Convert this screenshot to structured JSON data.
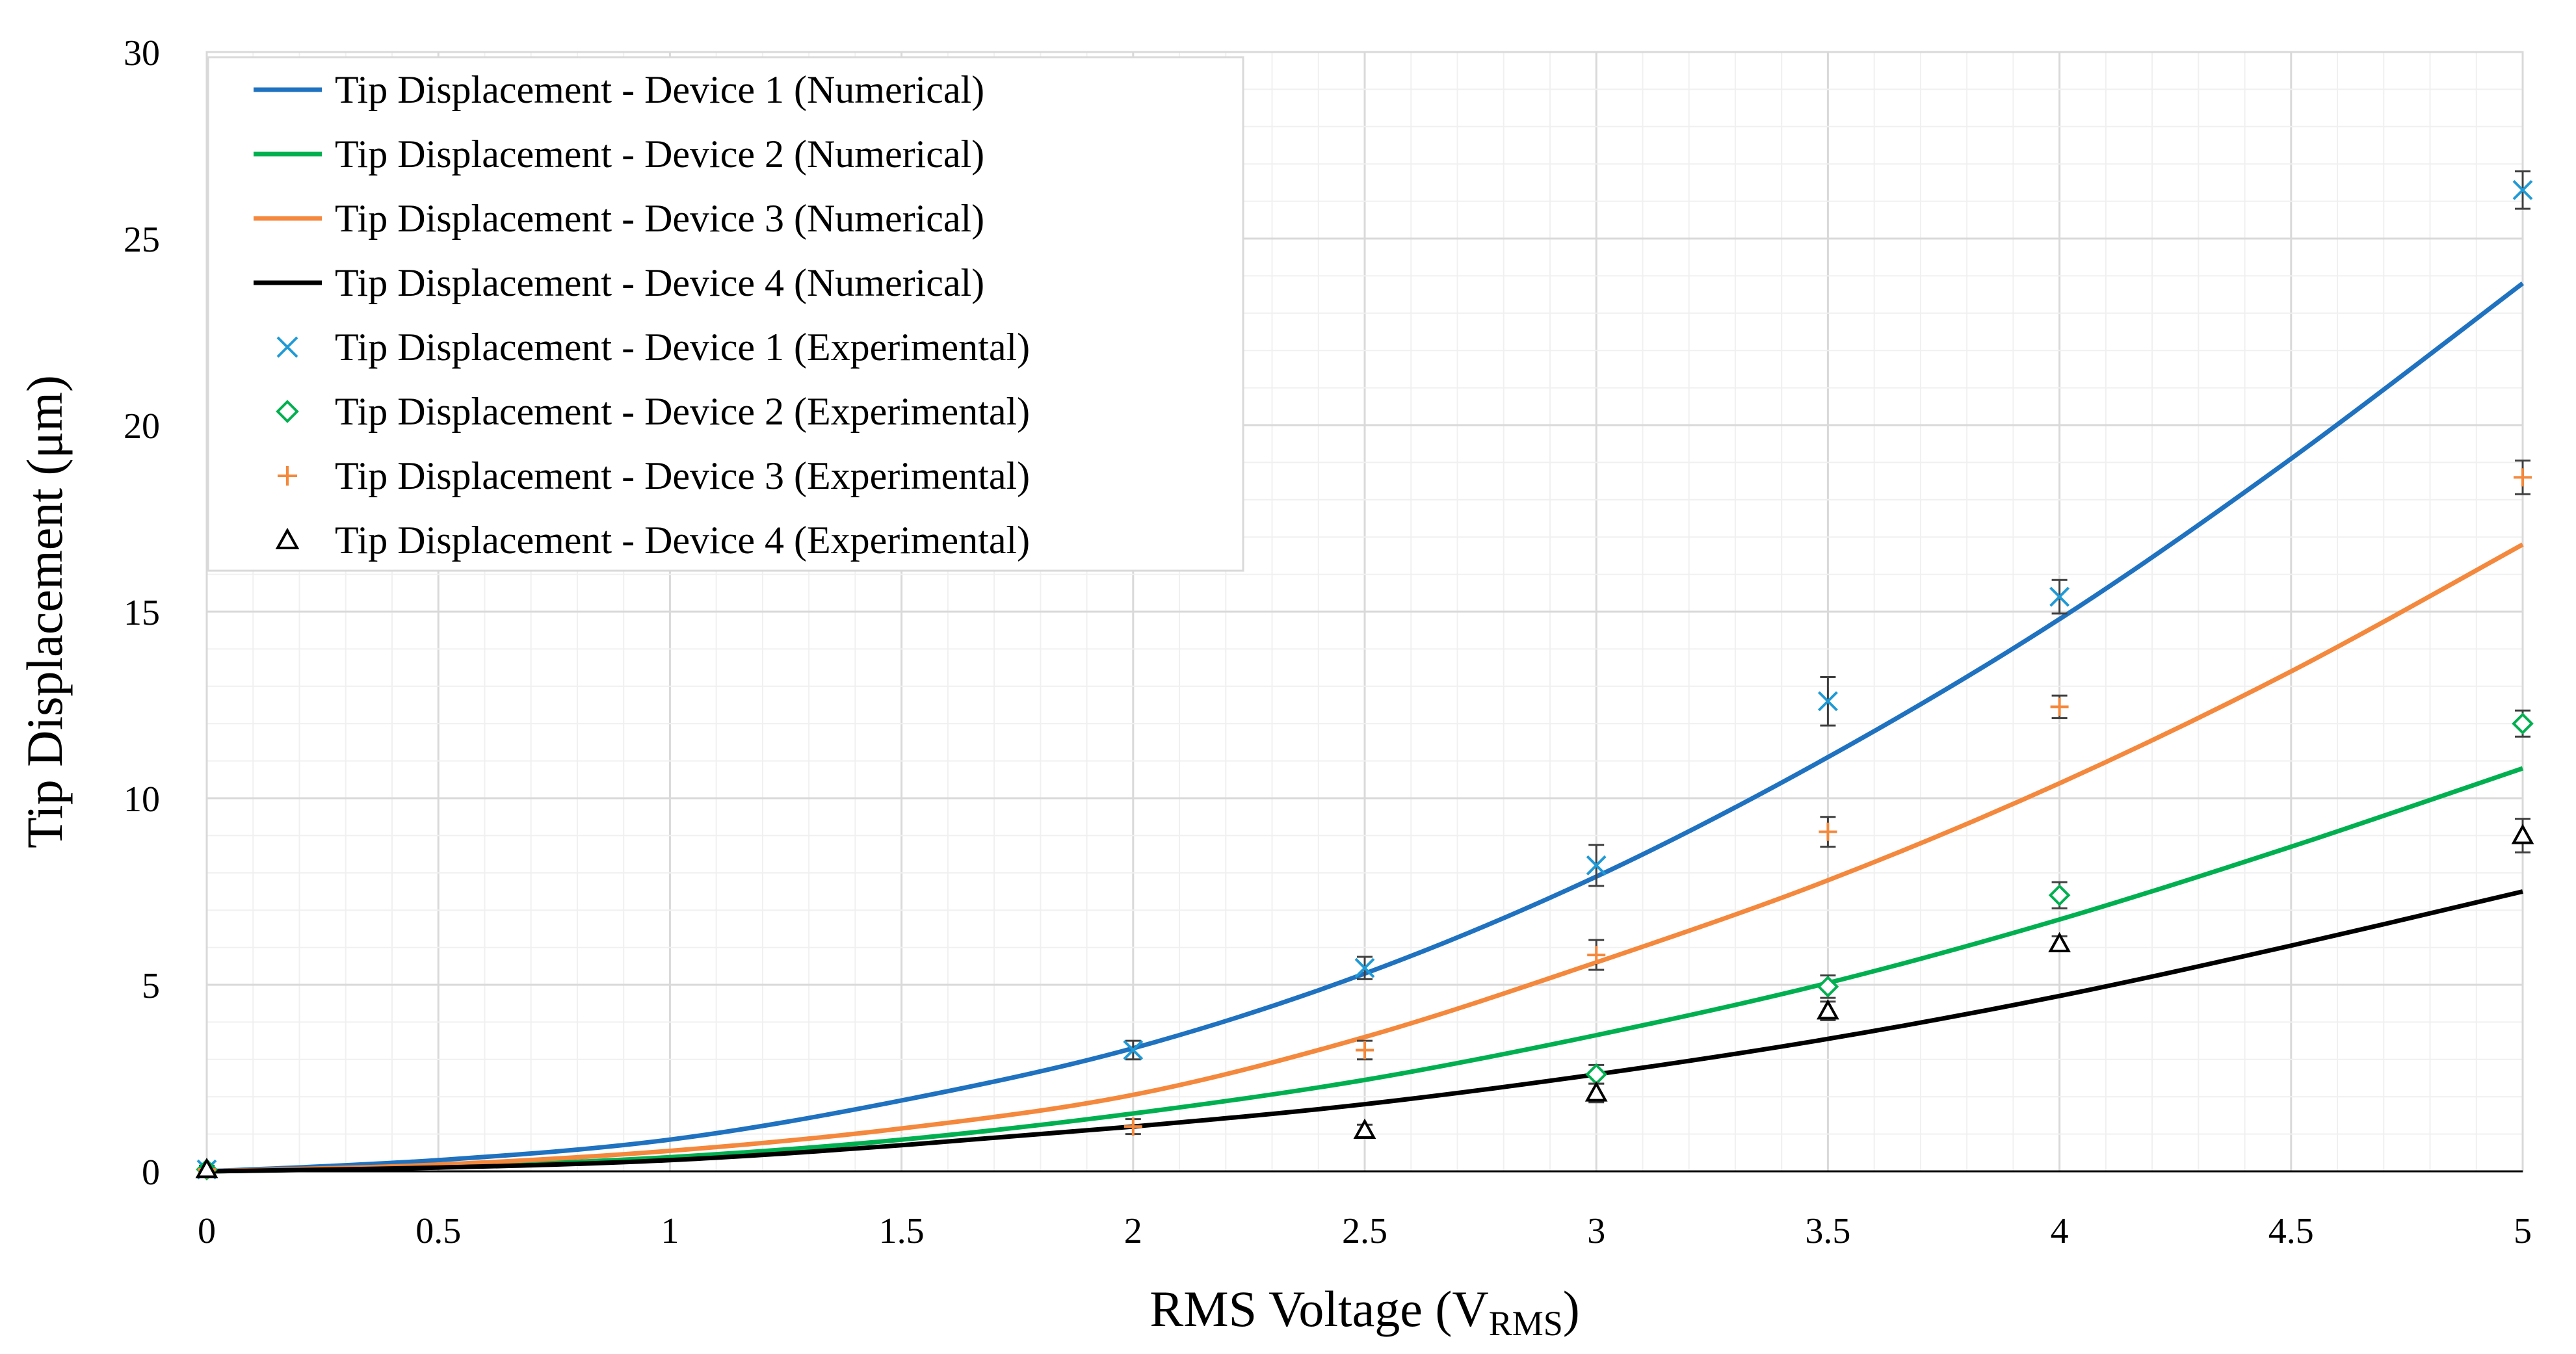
{
  "chart_data": {
    "type": "line",
    "xlabel": "RMS Voltage (V",
    "xlabel_subscript": "RMS",
    "xlabel_suffix": ")",
    "ylabel": "Tip Displacement (μm)",
    "xlim": [
      0,
      5
    ],
    "ylim": [
      0,
      30
    ],
    "x_ticks": [
      0,
      0.5,
      1,
      1.5,
      2,
      2.5,
      3,
      3.5,
      4,
      4.5,
      5
    ],
    "x_tick_labels": [
      "0",
      "0.5",
      "1",
      "1.5",
      "2",
      "2.5",
      "3",
      "3.5",
      "4",
      "4.5",
      "5"
    ],
    "y_ticks": [
      0,
      5,
      10,
      15,
      20,
      25,
      30
    ],
    "y_tick_labels": [
      "0",
      "5",
      "10",
      "15",
      "20",
      "25",
      "30"
    ],
    "grid": true,
    "minor_grid": true,
    "legend_position": "top-left",
    "numerical_series": [
      {
        "name": "Tip Displacement - Device 1 (Numerical)",
        "color": "#1f72c0",
        "x": [
          0,
          0.5,
          1,
          1.5,
          2,
          2.5,
          3,
          3.5,
          4,
          4.5,
          5
        ],
        "y": [
          0,
          0.3,
          0.85,
          1.9,
          3.3,
          5.3,
          7.9,
          11.1,
          14.8,
          19.1,
          23.8
        ]
      },
      {
        "name": "Tip Displacement - Device 2 (Numerical)",
        "color": "#00b050",
        "x": [
          0,
          0.5,
          1,
          1.5,
          2,
          2.5,
          3,
          3.5,
          4,
          4.5,
          5
        ],
        "y": [
          0,
          0.12,
          0.38,
          0.85,
          1.55,
          2.45,
          3.65,
          5.05,
          6.75,
          8.7,
          10.8
        ]
      },
      {
        "name": "Tip Displacement - Device 3 (Numerical)",
        "color": "#f4883c",
        "x": [
          0,
          0.5,
          1,
          1.5,
          2,
          2.5,
          3,
          3.5,
          4,
          4.5,
          5
        ],
        "y": [
          0,
          0.18,
          0.55,
          1.15,
          2.05,
          3.6,
          5.6,
          7.8,
          10.4,
          13.4,
          16.8
        ]
      },
      {
        "name": "Tip Displacement - Device 4 (Numerical)",
        "color": "#000000",
        "x": [
          0,
          0.5,
          1,
          1.5,
          2,
          2.5,
          3,
          3.5,
          4,
          4.5,
          5
        ],
        "y": [
          0,
          0.1,
          0.3,
          0.7,
          1.2,
          1.8,
          2.6,
          3.55,
          4.7,
          6.05,
          7.5
        ]
      }
    ],
    "experimental_series": [
      {
        "name": "Tip Displacement - Device 1 (Experimental)",
        "color": "#1f9ad6",
        "marker": "x",
        "x": [
          0,
          2,
          2.5,
          3,
          3.5,
          4,
          5
        ],
        "y": [
          0.05,
          3.25,
          5.45,
          8.2,
          12.6,
          15.4,
          26.3
        ],
        "err": [
          0.1,
          0.25,
          0.3,
          0.55,
          0.65,
          0.45,
          0.5
        ]
      },
      {
        "name": "Tip Displacement - Device 2 (Experimental)",
        "color": "#00b050",
        "marker": "diamond",
        "x": [
          0,
          3,
          3.5,
          4,
          5
        ],
        "y": [
          0.05,
          2.6,
          4.95,
          7.4,
          12.0
        ],
        "err": [
          0.05,
          0.25,
          0.3,
          0.35,
          0.35
        ]
      },
      {
        "name": "Tip Displacement - Device 3 (Experimental)",
        "color": "#f4883c",
        "marker": "plus",
        "x": [
          0,
          2,
          2.5,
          3,
          3.5,
          4,
          5
        ],
        "y": [
          0.05,
          1.2,
          3.25,
          5.8,
          9.1,
          12.45,
          18.6
        ],
        "err": [
          0.05,
          0.2,
          0.25,
          0.4,
          0.4,
          0.3,
          0.45
        ]
      },
      {
        "name": "Tip Displacement - Device 4 (Experimental)",
        "color": "#000000",
        "marker": "triangle",
        "x": [
          0,
          2.5,
          3,
          3.5,
          4,
          5
        ],
        "y": [
          0.05,
          1.1,
          2.1,
          4.3,
          6.1,
          9.0
        ],
        "err": [
          0.05,
          0.15,
          0.25,
          0.25,
          0.2,
          0.45
        ]
      }
    ]
  }
}
